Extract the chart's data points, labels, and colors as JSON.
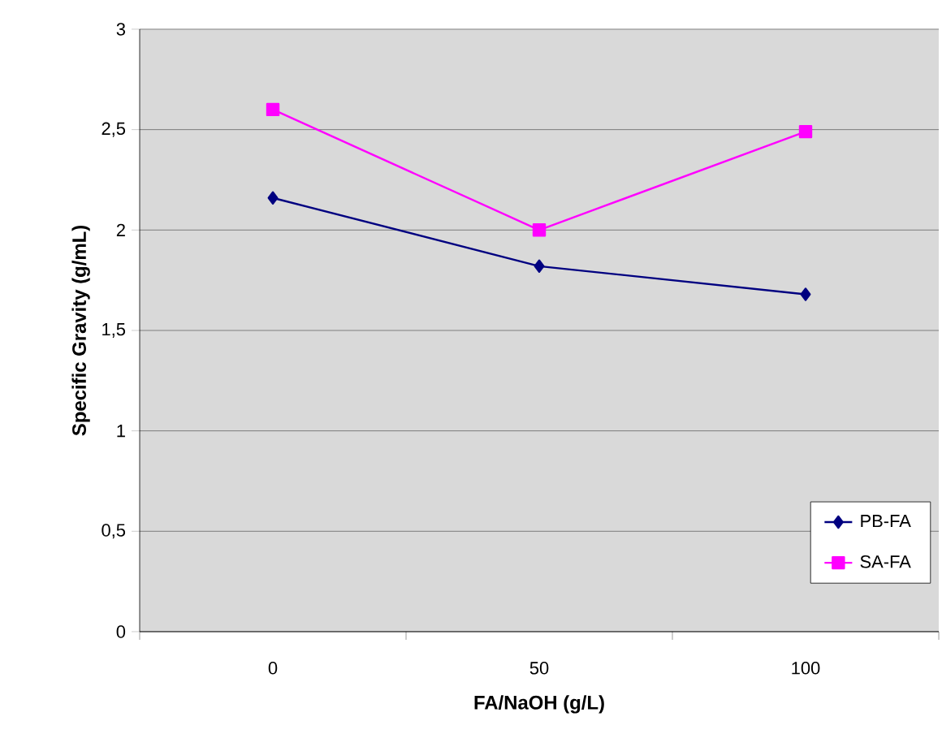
{
  "chart_data": {
    "type": "line",
    "xlabel": "FA/NaOH (g/L)",
    "ylabel": "Specific Gravity (g/mL)",
    "categories": [
      "0",
      "50",
      "100"
    ],
    "series": [
      {
        "name": "PB-FA",
        "color": "#000080",
        "marker": "diamond",
        "values": [
          2.16,
          1.82,
          1.68
        ]
      },
      {
        "name": "SA-FA",
        "color": "#ff00ff",
        "marker": "square",
        "values": [
          2.6,
          2.0,
          2.49
        ]
      }
    ],
    "ylim": [
      0,
      3
    ],
    "yticks": [
      0,
      {
        "value": 0.5,
        "label": "0,5"
      },
      1,
      {
        "value": 1.5,
        "label": "1,5"
      },
      2,
      {
        "value": 2.5,
        "label": "2,5"
      },
      3
    ],
    "grid": "y",
    "legend": "bottom right",
    "line_style": "solid"
  }
}
